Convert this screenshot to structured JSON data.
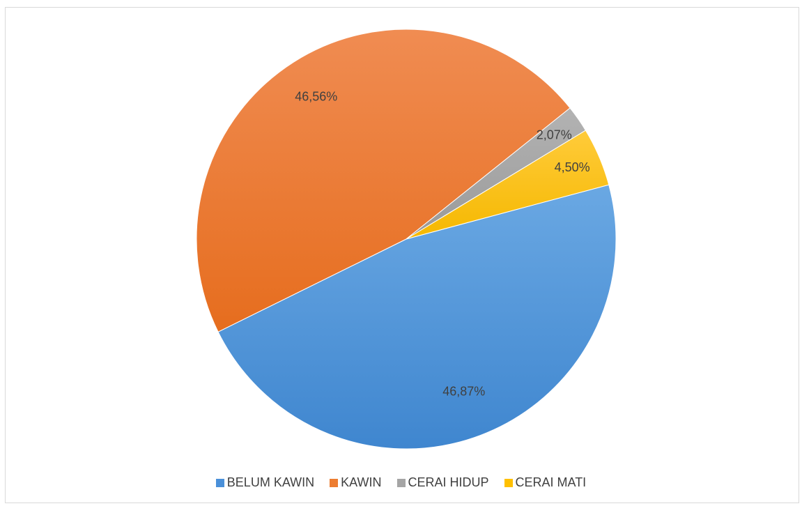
{
  "chart_data": {
    "type": "pie",
    "title": "",
    "categories": [
      "BELUM KAWIN",
      "KAWIN",
      "CERAI HIDUP",
      "CERAI MATI"
    ],
    "values": [
      46.87,
      46.56,
      2.07,
      4.5
    ],
    "data_labels": [
      "46,87%",
      "46,56%",
      "2,07%",
      "4,50%"
    ],
    "colors": [
      "#4a90d9",
      "#ed7d31",
      "#a5a5a5",
      "#ffc000"
    ],
    "legend": {
      "position": "bottom",
      "entries": [
        "BELUM KAWIN",
        "KAWIN",
        "CERAI HIDUP",
        "CERAI MATI"
      ]
    }
  }
}
